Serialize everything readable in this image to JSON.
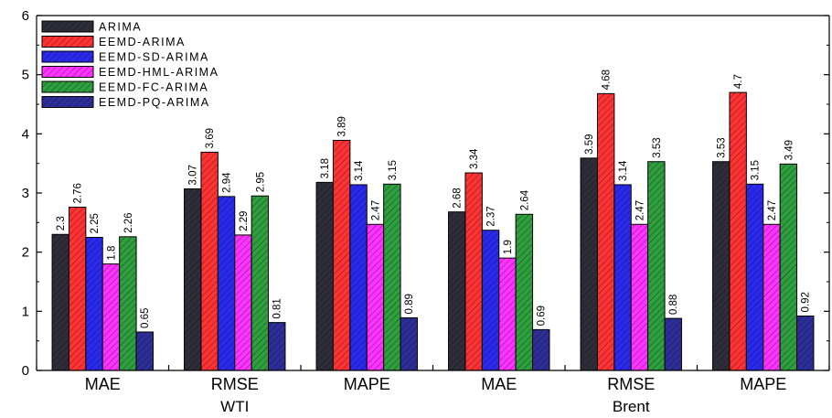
{
  "chart_data": {
    "type": "bar",
    "categories": [
      "MAE",
      "RMSE",
      "MAPE",
      "MAE",
      "RMSE",
      "MAPE"
    ],
    "groups": [
      {
        "label": "WTI",
        "category_indices": [
          0,
          1,
          2
        ]
      },
      {
        "label": "Brent",
        "category_indices": [
          3,
          4,
          5
        ]
      }
    ],
    "series": [
      {
        "name": "ARIMA",
        "color": "#2e2e3a",
        "values": [
          2.3,
          3.07,
          3.18,
          2.68,
          3.59,
          3.53
        ],
        "labels": [
          "2.3",
          "3.07",
          "3.18",
          "2.68",
          "3.59",
          "3.53"
        ]
      },
      {
        "name": "EEMD-ARIMA",
        "color": "#ff3333",
        "values": [
          2.76,
          3.69,
          3.89,
          3.34,
          4.68,
          4.7
        ],
        "labels": [
          "2.76",
          "3.69",
          "3.89",
          "3.34",
          "4.68",
          "4.7"
        ]
      },
      {
        "name": "EEMD-SD-ARIMA",
        "color": "#2a2aee",
        "values": [
          2.25,
          2.94,
          3.14,
          2.37,
          3.14,
          3.15
        ],
        "labels": [
          "2.25",
          "2.94",
          "3.14",
          "2.37",
          "3.14",
          "3.15"
        ]
      },
      {
        "name": "EEMD-HML-ARIMA",
        "color": "#ff33ff",
        "values": [
          1.8,
          2.29,
          2.47,
          1.9,
          2.47,
          2.47
        ],
        "labels": [
          "1.8",
          "2.29",
          "2.47",
          "1.9",
          "2.47",
          "2.47"
        ]
      },
      {
        "name": "EEMD-FC-ARIMA",
        "color": "#2e9e3e",
        "values": [
          2.26,
          2.95,
          3.15,
          2.64,
          3.53,
          3.49
        ],
        "labels": [
          "2.26",
          "2.95",
          "3.15",
          "2.64",
          "3.53",
          "3.49"
        ]
      },
      {
        "name": "EEMD-PQ-ARIMA",
        "color": "#2e2e99",
        "values": [
          0.65,
          0.81,
          0.89,
          0.69,
          0.88,
          0.92
        ],
        "labels": [
          "0.65",
          "0.81",
          "0.89",
          "0.69",
          "0.88",
          "0.92"
        ]
      }
    ],
    "yticks": [
      "0",
      "1",
      "2",
      "3",
      "4",
      "5",
      "6"
    ],
    "ylim": [
      0,
      6
    ],
    "xlabel": "",
    "ylabel": "",
    "title": "",
    "grid": false,
    "legend_position": "top-left",
    "bar_pattern": "diagonal-hatch"
  }
}
